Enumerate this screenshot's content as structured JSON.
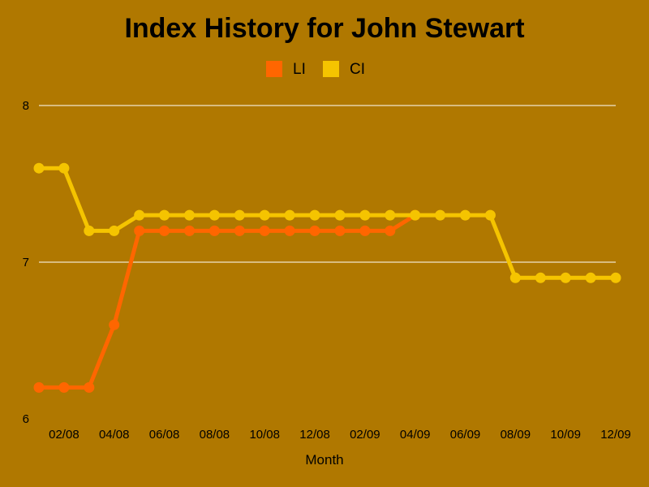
{
  "chart_data": {
    "type": "line",
    "title": "Index History for John Stewart",
    "xlabel": "Month",
    "ylabel": "",
    "ylim": [
      6,
      8
    ],
    "yticks": [
      "8",
      "7",
      "6"
    ],
    "x": [
      "01/08",
      "02/08",
      "03/08",
      "04/08",
      "05/08",
      "06/08",
      "07/08",
      "08/08",
      "09/08",
      "10/08",
      "11/08",
      "12/08",
      "01/09",
      "02/09",
      "03/09",
      "04/09",
      "05/09",
      "06/09",
      "07/09",
      "08/09",
      "09/09",
      "10/09",
      "11/09",
      "12/09"
    ],
    "xtick_labels": [
      "02/08",
      "04/08",
      "06/08",
      "08/08",
      "10/08",
      "12/08",
      "02/09",
      "04/09",
      "06/09",
      "08/09",
      "10/09",
      "12/09"
    ],
    "legend_position": "top-center",
    "grid": true,
    "series": [
      {
        "name": "LI",
        "color": "#FF6600",
        "values": [
          6.2,
          6.2,
          6.2,
          6.6,
          7.2,
          7.2,
          7.2,
          7.2,
          7.2,
          7.2,
          7.2,
          7.2,
          7.2,
          7.2,
          7.2,
          7.3,
          null,
          null,
          null,
          null,
          null,
          null,
          null,
          null
        ]
      },
      {
        "name": "CI",
        "color": "#F5C400",
        "values": [
          7.6,
          7.6,
          7.2,
          7.2,
          7.3,
          7.3,
          7.3,
          7.3,
          7.3,
          7.3,
          7.3,
          7.3,
          7.3,
          7.3,
          7.3,
          7.3,
          7.3,
          7.3,
          7.3,
          6.9,
          6.9,
          6.9,
          6.9,
          6.9
        ]
      }
    ]
  },
  "colors": {
    "background": "#B07800",
    "gridline": "#FFFFFF",
    "text": "#000000"
  }
}
